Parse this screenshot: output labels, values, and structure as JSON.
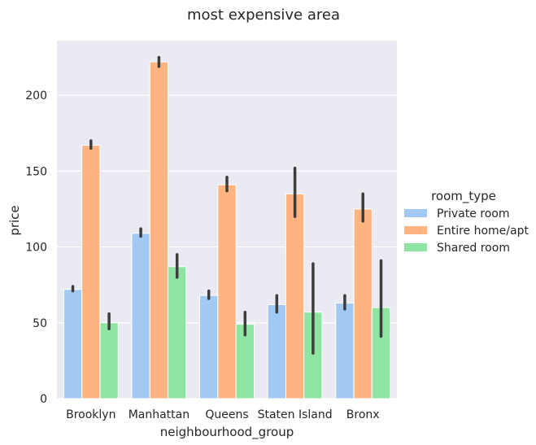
{
  "chart_data": {
    "type": "bar",
    "title": "most expensive area",
    "xlabel": "neighbourhood_group",
    "ylabel": "price",
    "categories": [
      "Brooklyn",
      "Manhattan",
      "Queens",
      "Staten Island",
      "Bronx"
    ],
    "ylim": [
      0,
      236
    ],
    "yticks": [
      0,
      50,
      100,
      150,
      200
    ],
    "grid": true,
    "legend": {
      "title": "room_type",
      "placement": "right"
    },
    "series": [
      {
        "name": "Private room",
        "color": "#a1c9f4",
        "values": [
          72,
          109,
          68,
          62,
          63
        ],
        "ci_low": [
          71,
          107,
          66,
          57,
          59
        ],
        "ci_high": [
          74,
          112,
          71,
          68,
          68
        ]
      },
      {
        "name": "Entire home/apt",
        "color": "#ffb482",
        "values": [
          167,
          222,
          141,
          135,
          125
        ],
        "ci_low": [
          165,
          219,
          137,
          120,
          117
        ],
        "ci_high": [
          170,
          225,
          146,
          152,
          135
        ]
      },
      {
        "name": "Shared room",
        "color": "#8de5a1",
        "values": [
          50,
          87,
          49,
          57,
          60
        ],
        "ci_low": [
          46,
          80,
          42,
          30,
          41
        ],
        "ci_high": [
          56,
          95,
          57,
          89,
          91
        ]
      }
    ]
  }
}
